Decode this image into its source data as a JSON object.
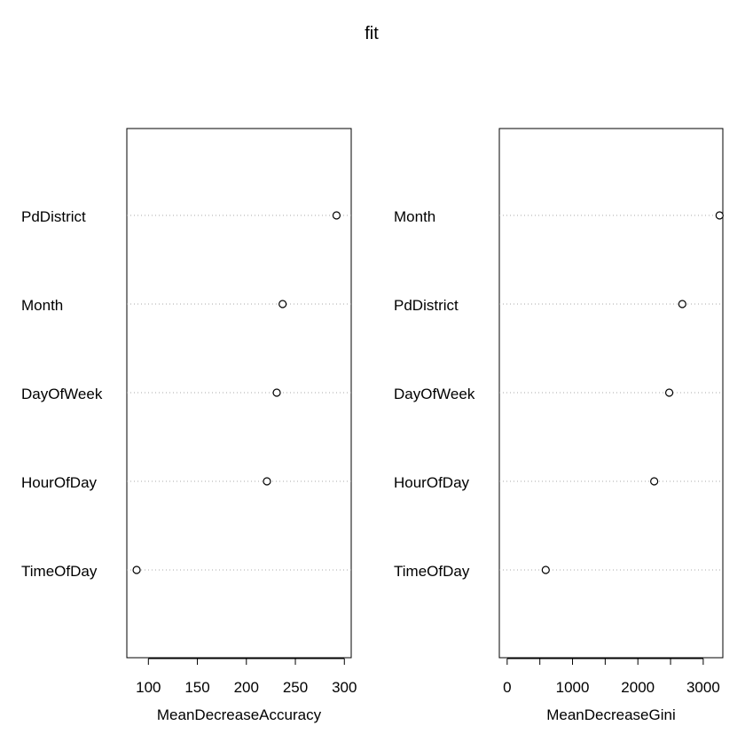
{
  "title": "fit",
  "chart_data": [
    {
      "type": "scatter",
      "variant": "dotchart",
      "xlabel": "MeanDecreaseAccuracy",
      "xlim": [
        78,
        307
      ],
      "xticks": [
        100,
        150,
        200,
        250,
        300
      ],
      "categories": [
        "PdDistrict",
        "Month",
        "DayOfWeek",
        "HourOfDay",
        "TimeOfDay"
      ],
      "values": [
        292,
        237,
        231,
        221,
        88
      ],
      "guide_lines": "dotted",
      "grid": false
    },
    {
      "type": "scatter",
      "variant": "dotchart",
      "xlabel": "MeanDecreaseGini",
      "xlim": [
        -120,
        3300
      ],
      "xticks": [
        0,
        1000,
        2000,
        3000
      ],
      "minor_ticks": [
        500,
        1500,
        2500
      ],
      "categories": [
        "Month",
        "PdDistrict",
        "DayOfWeek",
        "HourOfDay",
        "TimeOfDay"
      ],
      "values": [
        3250,
        2680,
        2480,
        2250,
        590
      ],
      "guide_lines": "dotted",
      "grid": false
    }
  ]
}
